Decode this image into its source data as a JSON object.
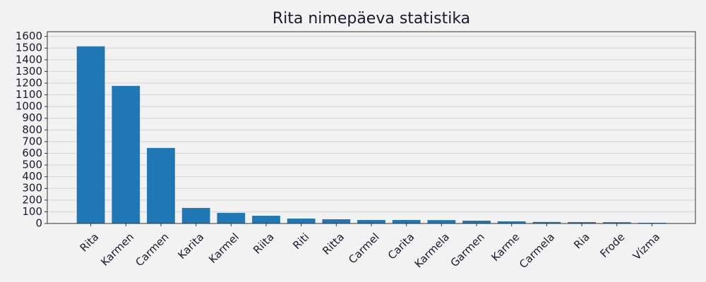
{
  "chart_data": {
    "type": "bar",
    "title": "Rita nimepäeva statistika",
    "categories": [
      "Rita",
      "Karmen",
      "Carmen",
      "Karita",
      "Karmel",
      "Riita",
      "Riti",
      "Ritta",
      "Carmel",
      "Carita",
      "Karmela",
      "Garmen",
      "Karme",
      "Carmela",
      "Ria",
      "Frode",
      "Vízma"
    ],
    "values": [
      1515,
      1177,
      646,
      133,
      91,
      66,
      42,
      36,
      30,
      30,
      29,
      24,
      18,
      13,
      12,
      11,
      6
    ],
    "color": "#1f77b4",
    "ylim": [
      0,
      1640
    ],
    "yticks": [
      0,
      100,
      200,
      300,
      400,
      500,
      600,
      700,
      800,
      900,
      1000,
      1100,
      1200,
      1300,
      1400,
      1500,
      1600
    ],
    "grid": true
  }
}
